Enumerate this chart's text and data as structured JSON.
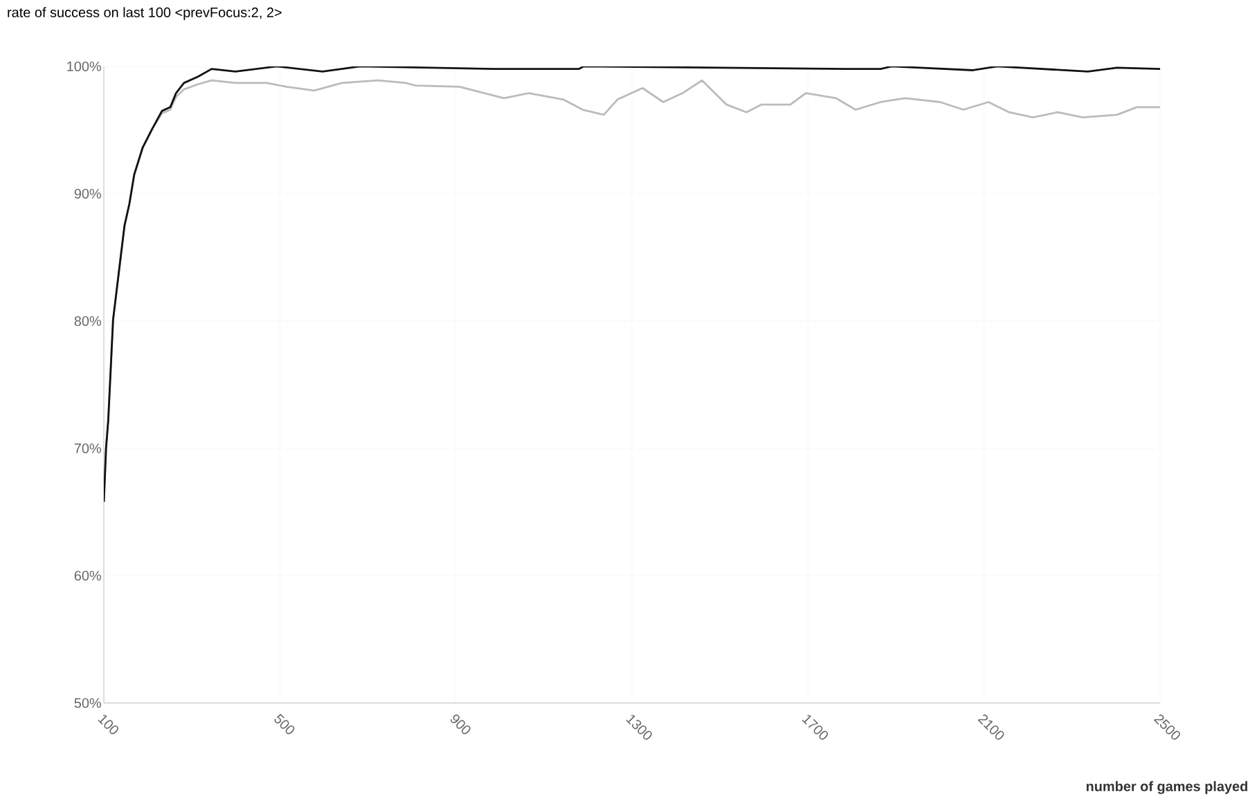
{
  "chart_data": {
    "type": "line",
    "title": "rate of success on last 100 <prevFocus:2, 2>",
    "xlabel": "number of games played",
    "xlim": [
      100,
      2500
    ],
    "xticks": [
      100,
      500,
      900,
      1300,
      1700,
      2100,
      2500
    ],
    "ylim": [
      50,
      100
    ],
    "yticks": [
      {
        "value": 50,
        "label": "50%"
      },
      {
        "value": 60,
        "label": "60%"
      },
      {
        "value": 70,
        "label": "70%"
      },
      {
        "value": 80,
        "label": "80%"
      },
      {
        "value": 90,
        "label": "90%"
      },
      {
        "value": 100,
        "label": "100%"
      }
    ],
    "grid": true,
    "marker": "none",
    "line_style": "solid",
    "series": [
      {
        "color": "#bbbbbb",
        "x": [
          100,
          105,
          110,
          121,
          135,
          147,
          158,
          169,
          188,
          210,
          232,
          251,
          264,
          282,
          314,
          345,
          399,
          471,
          515,
          578,
          641,
          723,
          786,
          808,
          908,
          1009,
          1066,
          1144,
          1188,
          1236,
          1267,
          1324,
          1371,
          1415,
          1459,
          1515,
          1560,
          1594,
          1660,
          1695,
          1764,
          1808,
          1865,
          1921,
          2000,
          2053,
          2110,
          2157,
          2211,
          2267,
          2324,
          2402,
          2447,
          2500
        ],
        "values": [
          65.8,
          70,
          72.2,
          80.1,
          84.1,
          87.5,
          89.2,
          91.5,
          93.6,
          95.1,
          96.3,
          96.6,
          97.6,
          98.2,
          98.6,
          98.9,
          98.7,
          98.7,
          98.4,
          98.1,
          98.7,
          98.9,
          98.7,
          98.5,
          98.4,
          97.5,
          97.9,
          97.4,
          96.6,
          96.2,
          97.4,
          98.3,
          97.2,
          97.9,
          98.9,
          97.0,
          96.4,
          97.0,
          97.0,
          97.9,
          97.5,
          96.6,
          97.2,
          97.5,
          97.2,
          96.6,
          97.2,
          96.4,
          96.0,
          96.4,
          96.0,
          96.2,
          96.8,
          96.8
        ]
      },
      {
        "color": "#111111",
        "x": [
          100,
          105,
          110,
          121,
          135,
          147,
          158,
          169,
          188,
          210,
          232,
          251,
          264,
          282,
          314,
          345,
          399,
          493,
          597,
          682,
          987,
          1179,
          1190,
          1786,
          1865,
          1890,
          2075,
          2130,
          2336,
          2402,
          2500
        ],
        "values": [
          65.8,
          70,
          72.2,
          80.1,
          84.1,
          87.5,
          89.2,
          91.5,
          93.6,
          95.1,
          96.5,
          96.8,
          97.9,
          98.7,
          99.2,
          99.8,
          99.6,
          100,
          99.6,
          100,
          99.8,
          99.8,
          100,
          99.8,
          99.8,
          100,
          99.7,
          100,
          99.6,
          99.9,
          99.8
        ]
      }
    ]
  }
}
